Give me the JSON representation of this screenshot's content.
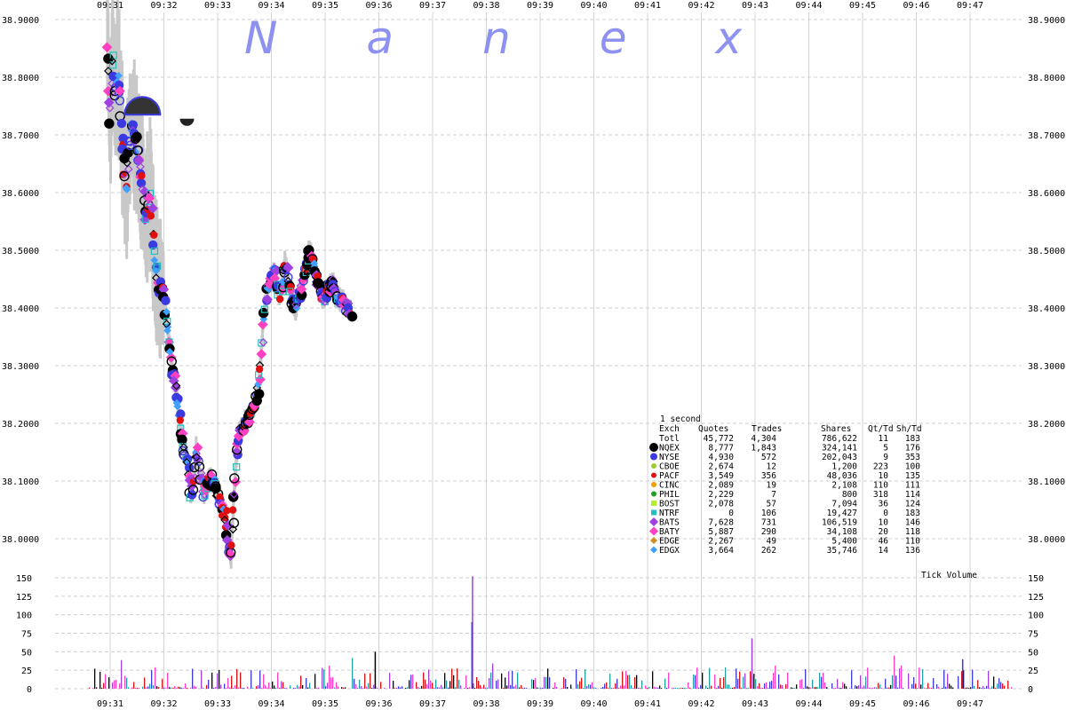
{
  "chart_data": {
    "type": "scatter",
    "title": "",
    "watermark": "Nanex",
    "x_ticks": [
      "09:31",
      "09:32",
      "09:33",
      "09:34",
      "09:35",
      "09:36",
      "09:37",
      "09:38",
      "09:39",
      "09:40",
      "09:41",
      "09:42",
      "09:43",
      "09:44",
      "09:45",
      "09:46",
      "09:47"
    ],
    "y_ticks": [
      "38.9000",
      "38.8000",
      "38.7000",
      "38.6000",
      "38.5000",
      "38.4000",
      "38.3000",
      "38.2000",
      "38.1000",
      "38.0000"
    ],
    "ylim": [
      37.95,
      38.9
    ],
    "volume_label": "Tick Volume",
    "volume_ticks": [
      "150",
      "125",
      "100",
      "75",
      "50",
      "25",
      "0"
    ],
    "volume_ylim": [
      0,
      160
    ],
    "price_path": [
      [
        30.95,
        38.86
      ],
      [
        31.0,
        38.72
      ],
      [
        31.05,
        38.84
      ],
      [
        31.1,
        38.76
      ],
      [
        31.15,
        38.81
      ],
      [
        31.2,
        38.74
      ],
      [
        31.25,
        38.65
      ],
      [
        31.3,
        38.6
      ],
      [
        31.35,
        38.68
      ],
      [
        31.4,
        38.72
      ],
      [
        31.45,
        38.7
      ],
      [
        31.5,
        38.68
      ],
      [
        31.55,
        38.65
      ],
      [
        31.6,
        38.62
      ],
      [
        31.65,
        38.55
      ],
      [
        31.7,
        38.58
      ],
      [
        31.75,
        38.6
      ],
      [
        31.8,
        38.52
      ],
      [
        31.85,
        38.47
      ],
      [
        31.9,
        38.44
      ],
      [
        31.95,
        38.43
      ],
      [
        32.0,
        38.42
      ],
      [
        32.05,
        38.38
      ],
      [
        32.1,
        38.34
      ],
      [
        32.15,
        38.3
      ],
      [
        32.2,
        38.27
      ],
      [
        32.25,
        38.24
      ],
      [
        32.3,
        38.2
      ],
      [
        32.35,
        38.17
      ],
      [
        32.4,
        38.15
      ],
      [
        32.45,
        38.12
      ],
      [
        32.5,
        38.08
      ],
      [
        32.55,
        38.1
      ],
      [
        32.6,
        38.16
      ],
      [
        32.65,
        38.12
      ],
      [
        32.7,
        38.1
      ],
      [
        32.75,
        38.08
      ],
      [
        32.8,
        38.09
      ],
      [
        32.85,
        38.11
      ],
      [
        32.9,
        38.1
      ],
      [
        32.95,
        38.09
      ],
      [
        33.0,
        38.08
      ],
      [
        33.05,
        38.06
      ],
      [
        33.1,
        38.05
      ],
      [
        33.15,
        38.04
      ],
      [
        33.2,
        37.99
      ],
      [
        33.25,
        37.97
      ],
      [
        33.3,
        38.07
      ],
      [
        33.35,
        38.14
      ],
      [
        33.4,
        38.18
      ],
      [
        33.45,
        38.19
      ],
      [
        33.5,
        38.2
      ],
      [
        33.55,
        38.21
      ],
      [
        33.6,
        38.21
      ],
      [
        33.65,
        38.22
      ],
      [
        33.7,
        38.24
      ],
      [
        33.75,
        38.26
      ],
      [
        33.8,
        38.3
      ],
      [
        33.85,
        38.38
      ],
      [
        33.9,
        38.42
      ],
      [
        33.95,
        38.44
      ],
      [
        34.0,
        38.45
      ],
      [
        34.05,
        38.47
      ],
      [
        34.1,
        38.44
      ],
      [
        34.15,
        38.42
      ],
      [
        34.2,
        38.44
      ],
      [
        34.25,
        38.48
      ],
      [
        34.3,
        38.46
      ],
      [
        34.35,
        38.43
      ],
      [
        34.4,
        38.41
      ],
      [
        34.45,
        38.4
      ],
      [
        34.5,
        38.42
      ],
      [
        34.55,
        38.43
      ],
      [
        34.6,
        38.45
      ],
      [
        34.65,
        38.47
      ],
      [
        34.7,
        38.5
      ],
      [
        34.75,
        38.49
      ],
      [
        34.8,
        38.46
      ],
      [
        34.85,
        38.45
      ],
      [
        34.9,
        38.44
      ],
      [
        34.95,
        38.42
      ],
      [
        35.0,
        38.42
      ],
      [
        35.05,
        38.43
      ],
      [
        35.1,
        38.44
      ],
      [
        35.15,
        38.44
      ],
      [
        35.2,
        38.42
      ],
      [
        35.25,
        38.42
      ],
      [
        35.3,
        38.41
      ],
      [
        35.35,
        38.41
      ],
      [
        35.4,
        38.4
      ],
      [
        35.45,
        38.4
      ],
      [
        35.5,
        38.39
      ]
    ],
    "legend": {
      "caption": "1 second",
      "columns": [
        "Exch",
        "Quotes",
        "Trades",
        "Shares",
        "Qt/Td",
        "Sh/Td"
      ],
      "rows": [
        {
          "exch": "Totl",
          "quotes": "45,772",
          "trades": "4,304",
          "shares": "786,622",
          "qt_td": "11",
          "sh_td": "183",
          "color": "none",
          "marker": "none"
        },
        {
          "exch": "NQEX",
          "quotes": "8,777",
          "trades": "1,843",
          "shares": "324,141",
          "qt_td": "5",
          "sh_td": "176",
          "color": "#000000",
          "marker": "circle-lg"
        },
        {
          "exch": "NYSE",
          "quotes": "4,930",
          "trades": "572",
          "shares": "202,043",
          "qt_td": "9",
          "sh_td": "353",
          "color": "#3a3ae0",
          "marker": "circle"
        },
        {
          "exch": "CBOE",
          "quotes": "2,674",
          "trades": "12",
          "shares": "1,200",
          "qt_td": "223",
          "sh_td": "100",
          "color": "#9acd32",
          "marker": "dot"
        },
        {
          "exch": "PACF",
          "quotes": "3,549",
          "trades": "356",
          "shares": "48,036",
          "qt_td": "10",
          "sh_td": "135",
          "color": "#e01010",
          "marker": "dot"
        },
        {
          "exch": "CINC",
          "quotes": "2,089",
          "trades": "19",
          "shares": "2,108",
          "qt_td": "110",
          "sh_td": "111",
          "color": "#f0a000",
          "marker": "dot"
        },
        {
          "exch": "PHIL",
          "quotes": "2,229",
          "trades": "7",
          "shares": "800",
          "qt_td": "318",
          "sh_td": "114",
          "color": "#20a020",
          "marker": "dot"
        },
        {
          "exch": "BOST",
          "quotes": "2,078",
          "trades": "57",
          "shares": "7,094",
          "qt_td": "36",
          "sh_td": "124",
          "color": "#b0ee30",
          "marker": "square"
        },
        {
          "exch": "NTRF",
          "quotes": "0",
          "trades": "106",
          "shares": "19,427",
          "qt_td": "0",
          "sh_td": "183",
          "color": "#20c0c0",
          "marker": "square"
        },
        {
          "exch": "BATS",
          "quotes": "7,628",
          "trades": "731",
          "shares": "106,519",
          "qt_td": "10",
          "sh_td": "146",
          "color": "#a040e0",
          "marker": "diamond"
        },
        {
          "exch": "BATY",
          "quotes": "5,887",
          "trades": "290",
          "shares": "34,108",
          "qt_td": "20",
          "sh_td": "118",
          "color": "#ff40c0",
          "marker": "diamond"
        },
        {
          "exch": "EDGE",
          "quotes": "2,267",
          "trades": "49",
          "shares": "5,400",
          "qt_td": "46",
          "sh_td": "110",
          "color": "#d09020",
          "marker": "diamond-sm"
        },
        {
          "exch": "EDGX",
          "quotes": "3,664",
          "trades": "262",
          "shares": "35,746",
          "qt_td": "14",
          "sh_td": "136",
          "color": "#40a0ff",
          "marker": "diamond-sm"
        }
      ]
    }
  }
}
